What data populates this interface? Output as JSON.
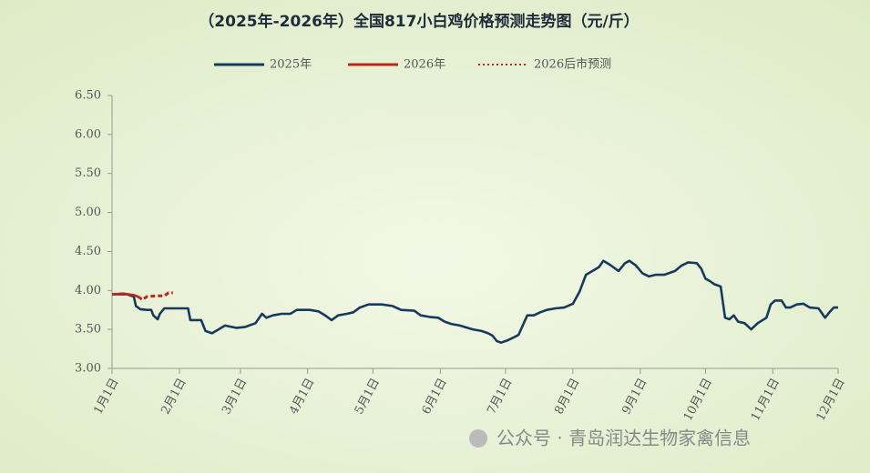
{
  "chart_data": {
    "type": "line",
    "title": "（2025年-2026年）全国817小白鸡价格预测走势图（元/斤）",
    "watermark": "公众号 · 青岛润达生物家禽信息",
    "xlim": [
      0,
      334
    ],
    "xticks": [
      {
        "value": 0,
        "label": "1月1日"
      },
      {
        "value": 31,
        "label": "2月1日"
      },
      {
        "value": 59,
        "label": "3月1日"
      },
      {
        "value": 90,
        "label": "4月1日"
      },
      {
        "value": 120,
        "label": "5月1日"
      },
      {
        "value": 151,
        "label": "6月1日"
      },
      {
        "value": 181,
        "label": "7月1日"
      },
      {
        "value": 212,
        "label": "8月1日"
      },
      {
        "value": 243,
        "label": "9月1日"
      },
      {
        "value": 273,
        "label": "10月1日"
      },
      {
        "value": 304,
        "label": "11月1日"
      },
      {
        "value": 334,
        "label": "12月1日"
      }
    ],
    "ylim": [
      3,
      6.5
    ],
    "yticks": [
      {
        "value": 3,
        "label": "3.00"
      },
      {
        "value": 3.5,
        "label": "3.50"
      },
      {
        "value": 4,
        "label": "4.00"
      },
      {
        "value": 4.5,
        "label": "4.50"
      },
      {
        "value": 5,
        "label": "5.00"
      },
      {
        "value": 5.5,
        "label": "5.50"
      },
      {
        "value": 6,
        "label": "6.00"
      },
      {
        "value": 6.5,
        "label": "6.50"
      }
    ],
    "legend": "top",
    "series": [
      {
        "name": "2025年",
        "color": "#163a5e",
        "style": "solid",
        "x": [
          0,
          7,
          10,
          11,
          13,
          16,
          18,
          19,
          21,
          22,
          24,
          30,
          35,
          36,
          41,
          43,
          46,
          49,
          52,
          57,
          61,
          66,
          69,
          71,
          74,
          78,
          82,
          85,
          91,
          95,
          98,
          101,
          104,
          108,
          111,
          114,
          118,
          124,
          129,
          133,
          139,
          142,
          146,
          150,
          153,
          156,
          160,
          166,
          170,
          173,
          175,
          177,
          179,
          182,
          185,
          187,
          191,
          194,
          197,
          200,
          204,
          208,
          212,
          215,
          218,
          221,
          224,
          226,
          229,
          233,
          236,
          238,
          241,
          244,
          247,
          250,
          254,
          259,
          262,
          265,
          269,
          271,
          273,
          275,
          277,
          280,
          282,
          284,
          286,
          288,
          291,
          294,
          297,
          301,
          303,
          305,
          308,
          310,
          312,
          315,
          318,
          321,
          325,
          328,
          330,
          332,
          334
        ],
        "values": [
          3.95,
          3.95,
          3.92,
          3.8,
          3.76,
          3.75,
          3.75,
          3.68,
          3.63,
          3.7,
          3.77,
          3.77,
          3.77,
          3.62,
          3.62,
          3.48,
          3.45,
          3.5,
          3.55,
          3.52,
          3.53,
          3.58,
          3.7,
          3.65,
          3.68,
          3.7,
          3.7,
          3.75,
          3.75,
          3.73,
          3.68,
          3.62,
          3.68,
          3.7,
          3.72,
          3.78,
          3.82,
          3.82,
          3.8,
          3.75,
          3.74,
          3.68,
          3.66,
          3.65,
          3.6,
          3.57,
          3.55,
          3.5,
          3.48,
          3.45,
          3.42,
          3.35,
          3.33,
          3.36,
          3.4,
          3.43,
          3.68,
          3.68,
          3.72,
          3.75,
          3.77,
          3.78,
          3.83,
          3.98,
          4.2,
          4.25,
          4.3,
          4.38,
          4.33,
          4.25,
          4.35,
          4.38,
          4.32,
          4.22,
          4.18,
          4.2,
          4.2,
          4.25,
          4.32,
          4.36,
          4.35,
          4.28,
          4.15,
          4.12,
          4.08,
          4.05,
          3.65,
          3.63,
          3.68,
          3.6,
          3.58,
          3.5,
          3.58,
          3.65,
          3.82,
          3.87,
          3.87,
          3.78,
          3.78,
          3.82,
          3.83,
          3.78,
          3.77,
          3.65,
          3.72,
          3.78,
          3.78
        ]
      },
      {
        "name": "2026年",
        "color": "#b8281c",
        "style": "solid",
        "x": [
          0,
          5,
          10,
          12
        ],
        "values": [
          3.95,
          3.96,
          3.94,
          3.92
        ]
      },
      {
        "name": "2026后市预测",
        "color": "#b8281c",
        "style": "dotted",
        "x": [
          12,
          14,
          16,
          20,
          24,
          26,
          28
        ],
        "values": [
          3.92,
          3.88,
          3.92,
          3.93,
          3.93,
          3.97,
          3.97
        ]
      }
    ]
  }
}
